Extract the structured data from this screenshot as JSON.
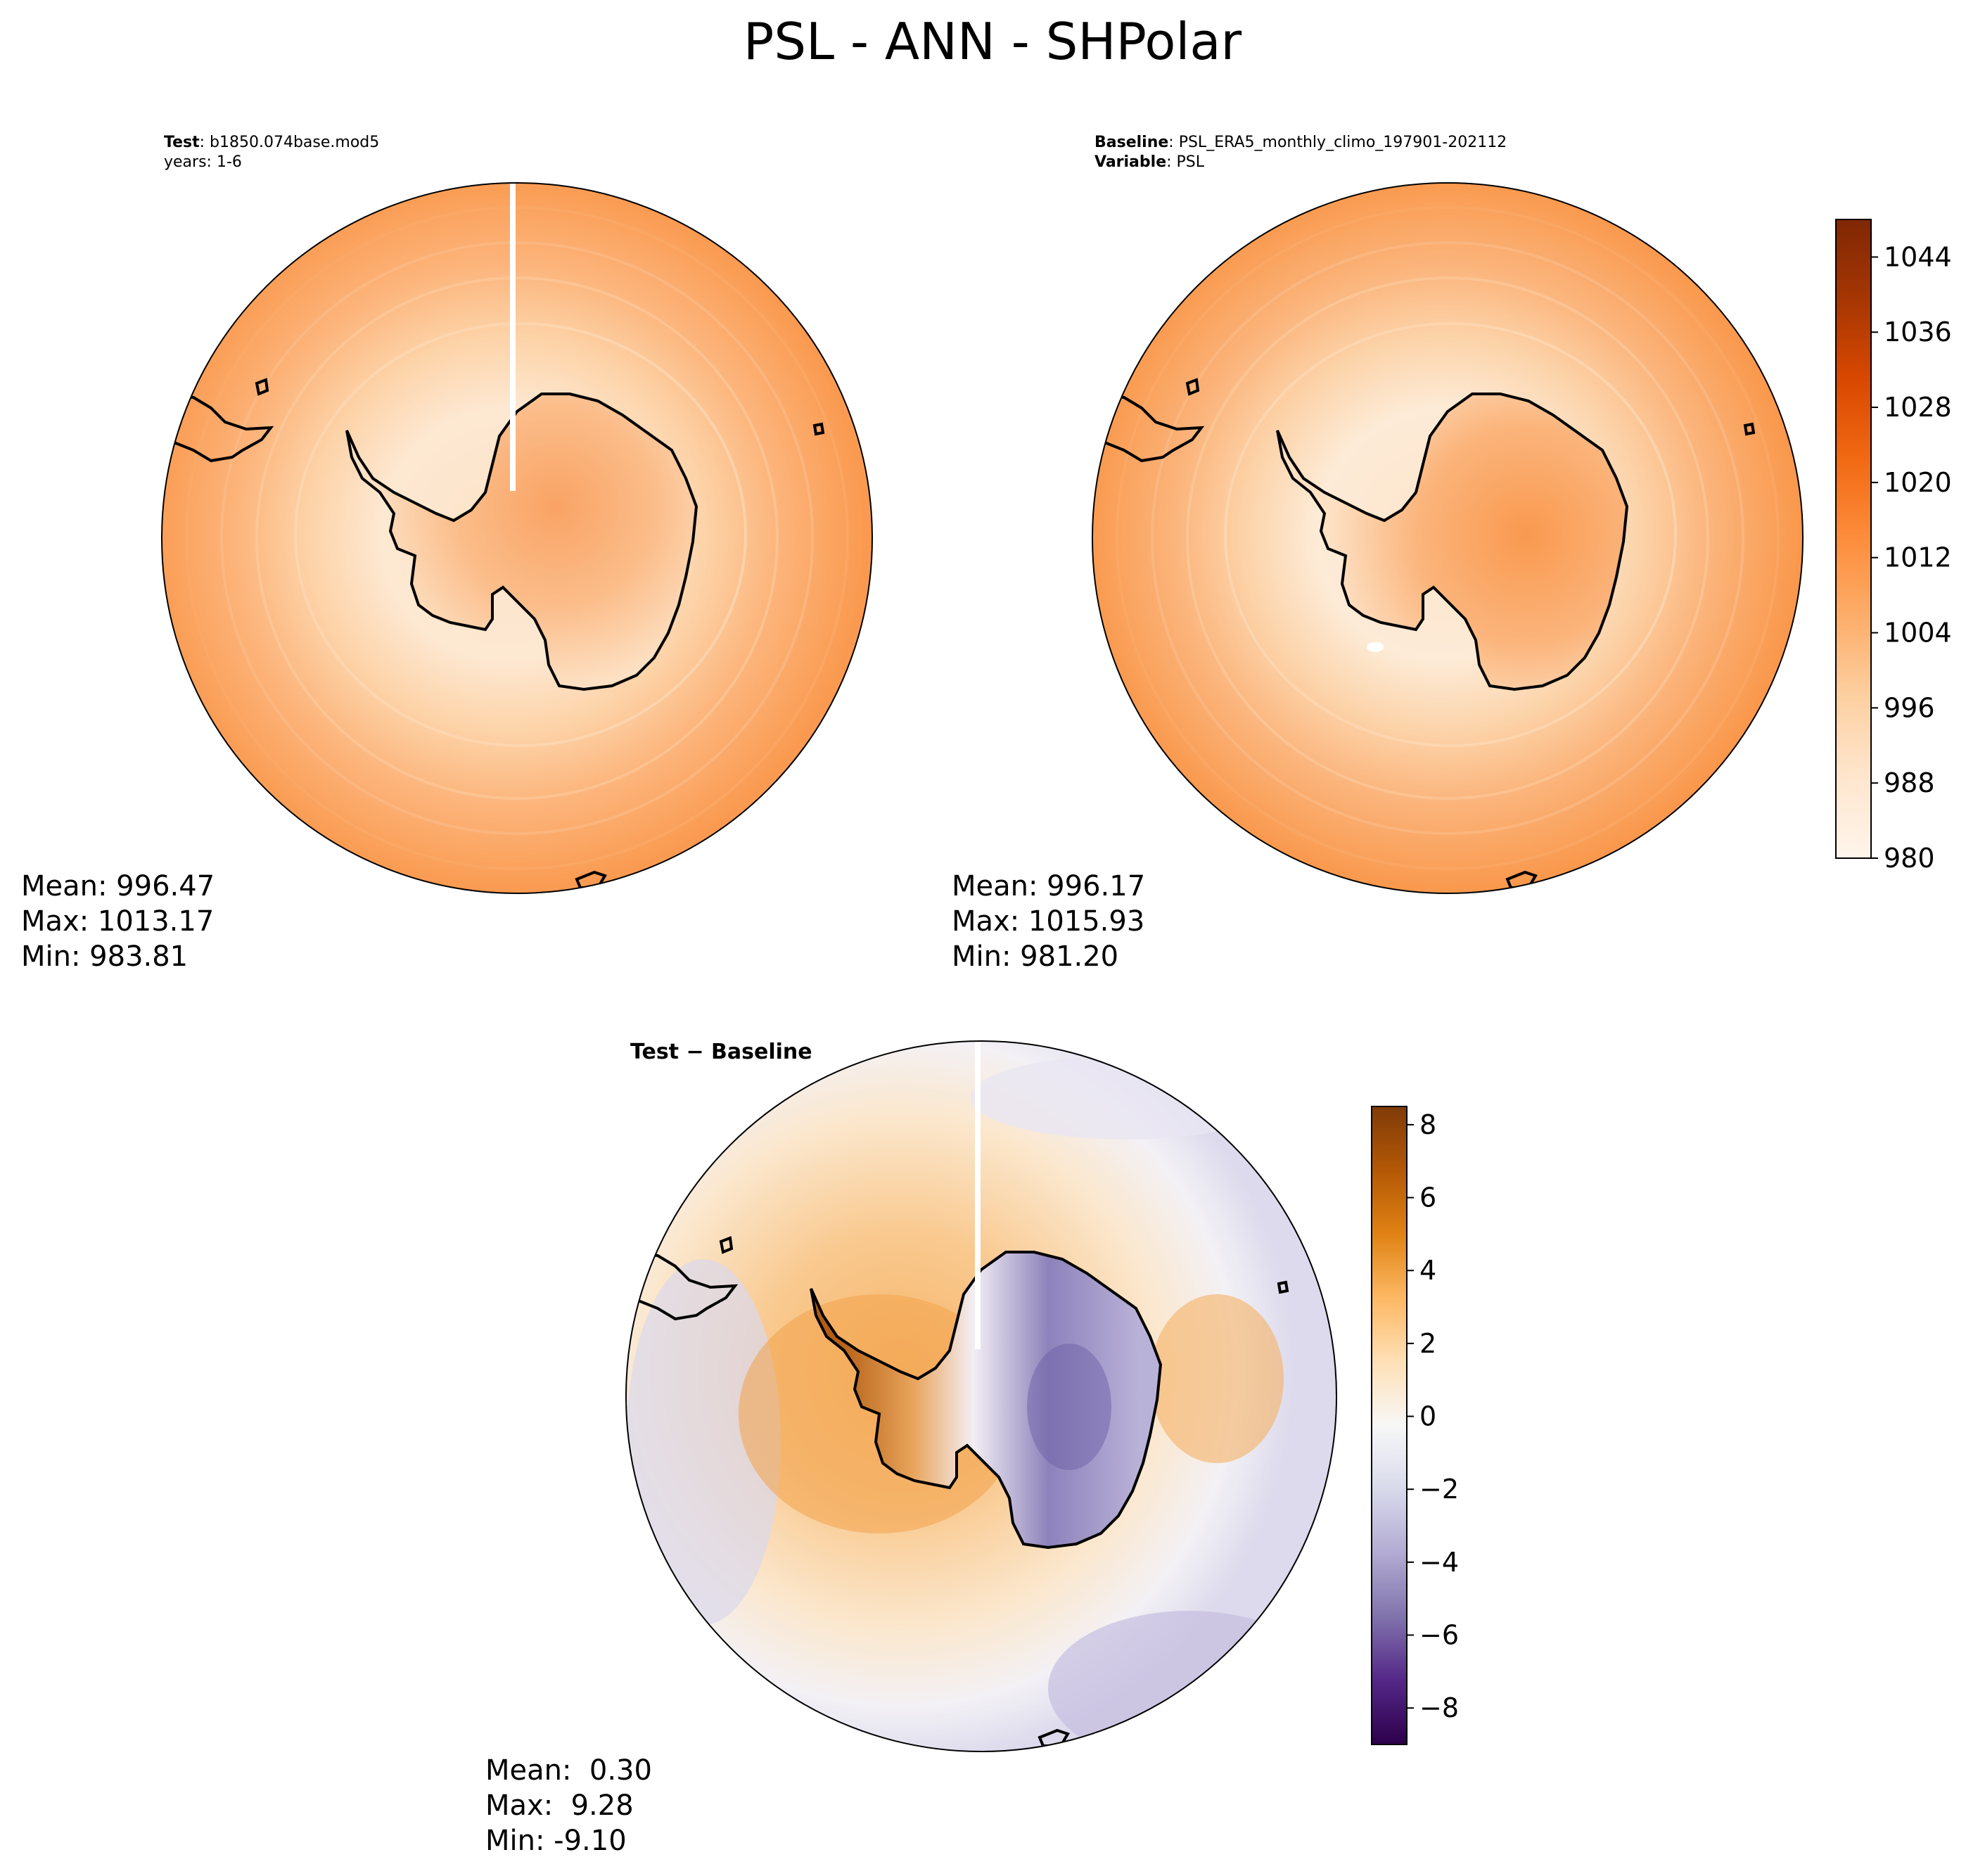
{
  "figure": {
    "title": "PSL - ANN - SHPolar"
  },
  "test_panel": {
    "label_key": "Test",
    "label_value": ": b1850.074base.mod5",
    "years": "years: 1-6",
    "stats": {
      "mean": "Mean: 996.47",
      "max": "Max: 1013.17",
      "min": "Min: 983.81"
    }
  },
  "baseline_panel": {
    "label_key": "Baseline",
    "label_value": ": PSL_ERA5_monthly_climo_197901-202112",
    "variable_key": "Variable",
    "variable_value": ": PSL",
    "stats": {
      "mean": "Mean: 996.17",
      "max": "Max: 1015.93",
      "min": "Min: 981.20"
    }
  },
  "diff_panel": {
    "title": "Test − Baseline",
    "stats": {
      "mean": "Mean:  0.30",
      "max": "Max:  9.28",
      "min": "Min: -9.10"
    }
  },
  "colorbar_top": {
    "ticks": [
      "1044",
      "1036",
      "1028",
      "1020",
      "1012",
      "1004",
      "996",
      "988",
      "980"
    ],
    "range": [
      980,
      1048
    ],
    "colors": [
      "#fff5eb",
      "#fee6ce",
      "#fdd0a2",
      "#fdae6b",
      "#fd8d3c",
      "#f16913",
      "#d94801",
      "#a63603",
      "#7f2704"
    ]
  },
  "colorbar_diff": {
    "ticks": [
      "8",
      "6",
      "4",
      "2",
      "0",
      "−2",
      "−4",
      "−6",
      "−8"
    ],
    "range": [
      -9,
      8.5
    ],
    "colors": [
      "#2d004b",
      "#542788",
      "#8073ac",
      "#b2abd2",
      "#d8daeb",
      "#f7f7f7",
      "#fee0b6",
      "#fdb863",
      "#e08214",
      "#b35806",
      "#7f3b08"
    ]
  }
}
